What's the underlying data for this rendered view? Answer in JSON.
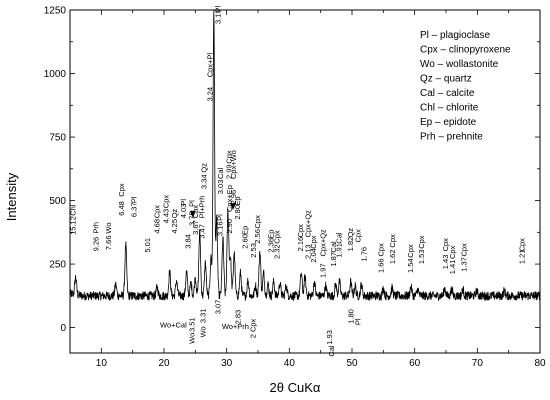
{
  "chart_data": {
    "type": "line",
    "xlabel": "2θ CuKα",
    "ylabel": "Intensity",
    "xlim": [
      5,
      80
    ],
    "ylim": [
      -100,
      1250
    ],
    "x_ticks": [
      "10",
      "20",
      "30",
      "40",
      "50",
      "60",
      "70",
      "80"
    ],
    "y_ticks": [
      "0",
      "250",
      "500",
      "750",
      "1000",
      "1250"
    ],
    "grid": false,
    "legend_position": "top-right",
    "legend": [
      "Pl – plagioclase",
      "Cpx – clinopyroxene",
      "Wo – wollastonite",
      "Qz – quartz",
      "Cal – calcite",
      "Chl – chlorite",
      "Ep – epidote",
      "Prh – prehnite"
    ],
    "series": [
      {
        "baseline": 125,
        "peaks": [
          [
            5.9,
            70
          ],
          [
            12.3,
            45
          ],
          [
            13.9,
            200
          ],
          [
            18.9,
            35
          ],
          [
            20.9,
            95
          ],
          [
            22.0,
            60
          ],
          [
            23.6,
            95
          ],
          [
            24.3,
            50
          ],
          [
            25.0,
            70
          ],
          [
            25.7,
            250
          ],
          [
            26.6,
            130
          ],
          [
            27.5,
            150
          ],
          [
            27.95,
            1125
          ],
          [
            28.4,
            300
          ],
          [
            29.4,
            225
          ],
          [
            30.2,
            330
          ],
          [
            30.6,
            150
          ],
          [
            31.2,
            170
          ],
          [
            32.2,
            90
          ],
          [
            33.4,
            60
          ],
          [
            34.6,
            40
          ],
          [
            35.3,
            175
          ],
          [
            35.9,
            90
          ],
          [
            36.6,
            45
          ],
          [
            37.5,
            55
          ],
          [
            38.5,
            50
          ],
          [
            39.5,
            40
          ],
          [
            41.9,
            90
          ],
          [
            42.5,
            75
          ],
          [
            44.0,
            55
          ],
          [
            45.8,
            40
          ],
          [
            47.4,
            45
          ],
          [
            48.0,
            55
          ],
          [
            49.8,
            55
          ],
          [
            50.5,
            40
          ],
          [
            51.5,
            45
          ],
          [
            55.0,
            30
          ],
          [
            56.4,
            30
          ],
          [
            59.4,
            35
          ],
          [
            60.5,
            25
          ],
          [
            64.8,
            30
          ],
          [
            65.9,
            25
          ],
          [
            67.7,
            25
          ],
          [
            69.9,
            20
          ],
          [
            74.3,
            20
          ]
        ]
      }
    ],
    "peak_labels": [
      {
        "text": "15.12",
        "x": 5.85,
        "y": 365
      },
      {
        "text": "Chl",
        "x": 5.85,
        "y": 440
      },
      {
        "text": "9.26",
        "x": 9.55,
        "y": 300
      },
      {
        "text": "Prh",
        "x": 9.55,
        "y": 370
      },
      {
        "text": "7.66",
        "x": 11.55,
        "y": 305
      },
      {
        "text": "Wo",
        "x": 11.55,
        "y": 370
      },
      {
        "text": "6.48",
        "x": 13.65,
        "y": 440
      },
      {
        "text": "Cpx",
        "x": 13.65,
        "y": 515
      },
      {
        "text": "6.37",
        "x": 15.65,
        "y": 435
      },
      {
        "text": "Pl",
        "x": 15.65,
        "y": 490
      },
      {
        "text": "5.01",
        "x": 17.75,
        "y": 295
      },
      {
        "text": "4.68",
        "x": 19.25,
        "y": 370
      },
      {
        "text": "Cpx",
        "x": 19.25,
        "y": 430
      },
      {
        "text": "4.43",
        "x": 20.75,
        "y": 410
      },
      {
        "text": "Cpx",
        "x": 20.75,
        "y": 470
      },
      {
        "text": "4.25",
        "x": 22.05,
        "y": 370
      },
      {
        "text": "Qz",
        "x": 22.05,
        "y": 430
      },
      {
        "text": "4.03",
        "x": 23.55,
        "y": 430
      },
      {
        "text": "Pl",
        "x": 23.55,
        "y": 480
      },
      {
        "text": "3.84",
        "x": 24.25,
        "y": 310
      },
      {
        "text": "3.75",
        "x": 24.85,
        "y": 400
      },
      {
        "text": "Pl",
        "x": 24.85,
        "y": 475
      },
      {
        "text": "3.67",
        "x": 25.45,
        "y": 365
      },
      {
        "text": "Cpx",
        "x": 25.45,
        "y": 430
      },
      {
        "text": "3.47",
        "x": 26.45,
        "y": 350
      },
      {
        "text": "Pl+Prh",
        "x": 26.45,
        "y": 430
      },
      {
        "text": "3.34",
        "x": 26.75,
        "y": 545
      },
      {
        "text": "Qz",
        "x": 26.75,
        "y": 610
      },
      {
        "text": "3.24",
        "x": 27.75,
        "y": 890
      },
      {
        "text": "Cpx+Pl",
        "x": 27.75,
        "y": 985
      },
      {
        "text": "3.19",
        "x": 29.05,
        "y": 1195
      },
      {
        "text": "Pl",
        "x": 29.05,
        "y": 1240
      },
      {
        "text": "3.16",
        "x": 29.35,
        "y": 360
      },
      {
        "text": "Pl",
        "x": 29.35,
        "y": 420
      },
      {
        "text": "3.03",
        "x": 29.45,
        "y": 525
      },
      {
        "text": "Cal",
        "x": 29.45,
        "y": 585
      },
      {
        "text": "2.99",
        "x": 30.75,
        "y": 585
      },
      {
        "text": "Cpx",
        "x": 30.75,
        "y": 645
      },
      {
        "text": "2.96",
        "x": 31.45,
        "y": 485
      },
      {
        "text": "Cpx+Wo",
        "x": 31.45,
        "y": 585
      },
      {
        "text": "2.90",
        "x": 30.85,
        "y": 370
      },
      {
        "text": "Cpx+Ep",
        "x": 30.85,
        "y": 455
      },
      {
        "text": "2.80",
        "x": 32.15,
        "y": 425
      },
      {
        "text": "Ep",
        "x": 32.15,
        "y": 480
      },
      {
        "text": "2.60",
        "x": 33.35,
        "y": 310
      },
      {
        "text": "Ep",
        "x": 33.35,
        "y": 365
      },
      {
        "text": "2.53",
        "x": 34.65,
        "y": 275
      },
      {
        "text": "2.56",
        "x": 35.35,
        "y": 330
      },
      {
        "text": "Cpx",
        "x": 35.35,
        "y": 390
      },
      {
        "text": "2.36",
        "x": 37.45,
        "y": 295
      },
      {
        "text": "Ep",
        "x": 37.45,
        "y": 350
      },
      {
        "text": "2.32",
        "x": 38.45,
        "y": 270
      },
      {
        "text": "Cpx",
        "x": 38.45,
        "y": 330
      },
      {
        "text": "2.16",
        "x": 42.15,
        "y": 300
      },
      {
        "text": "Cpx",
        "x": 42.15,
        "y": 355
      },
      {
        "text": "2.13",
        "x": 43.35,
        "y": 270
      },
      {
        "text": "Cpx+Qz",
        "x": 43.35,
        "y": 355
      },
      {
        "text": "2.04",
        "x": 44.25,
        "y": 255
      },
      {
        "text": "Cpx",
        "x": 44.25,
        "y": 310
      },
      {
        "text": "1.97",
        "x": 45.75,
        "y": 195
      },
      {
        "text": "Cpx+Qz",
        "x": 45.75,
        "y": 280
      },
      {
        "text": "1.91",
        "x": 48.35,
        "y": 275
      },
      {
        "text": "Cal",
        "x": 48.35,
        "y": 330
      },
      {
        "text": "1.87",
        "x": 47.45,
        "y": 240
      },
      {
        "text": "Cal",
        "x": 47.45,
        "y": 295
      },
      {
        "text": "1.82",
        "x": 50.15,
        "y": 300
      },
      {
        "text": "Qz",
        "x": 50.15,
        "y": 355
      },
      {
        "text": "1.80",
        "x": 50.25,
        "y": 15
      },
      {
        "text": "Pl",
        "x": 51.35,
        "y": 10
      },
      {
        "text": "1.76",
        "x": 52.35,
        "y": 260
      },
      {
        "text": "Cpx",
        "x": 51.35,
        "y": 335
      },
      {
        "text": "1.66",
        "x": 55.05,
        "y": 215
      },
      {
        "text": "Cpx",
        "x": 55.05,
        "y": 280
      },
      {
        "text": "1.62",
        "x": 56.85,
        "y": 250
      },
      {
        "text": "Cpx",
        "x": 56.85,
        "y": 315
      },
      {
        "text": "1.54",
        "x": 59.75,
        "y": 215
      },
      {
        "text": "Cpx",
        "x": 59.75,
        "y": 275
      },
      {
        "text": "1.53",
        "x": 61.45,
        "y": 250
      },
      {
        "text": "Cpx",
        "x": 61.45,
        "y": 310
      },
      {
        "text": "1.43",
        "x": 65.35,
        "y": 230
      },
      {
        "text": "Cpx",
        "x": 65.35,
        "y": 300
      },
      {
        "text": "1.41",
        "x": 66.45,
        "y": 210
      },
      {
        "text": "Cpx",
        "x": 66.45,
        "y": 270
      },
      {
        "text": "1.37",
        "x": 68.25,
        "y": 220
      },
      {
        "text": "Cpx",
        "x": 68.25,
        "y": 280
      },
      {
        "text": "1.21",
        "x": 77.55,
        "y": 250
      },
      {
        "text": "Cpx",
        "x": 77.55,
        "y": 300
      }
    ],
    "below_labels": [
      {
        "text": "Wo+Cal",
        "x": 21.5,
        "y": 0
      },
      {
        "text": "3.51",
        "x": 24.9,
        "y": 40
      },
      {
        "text": "Wo",
        "x": 24.9,
        "y": -20
      },
      {
        "text": "3.31",
        "x": 26.6,
        "y": 75
      },
      {
        "text": "Wo",
        "x": 26.6,
        "y": 5
      },
      {
        "text": "3.07",
        "x": 29.0,
        "y": 110
      },
      {
        "text": "Wo+Prh",
        "x": 31.4,
        "y": -5
      },
      {
        "text": "2.83",
        "x": 32.2,
        "y": 70
      },
      {
        "text": "2 Cpx",
        "x": 34.6,
        "y": 35
      },
      {
        "text": "1.93",
        "x": 46.8,
        "y": -10
      },
      {
        "text": "Cal",
        "x": 47.1,
        "y": -70
      }
    ]
  }
}
